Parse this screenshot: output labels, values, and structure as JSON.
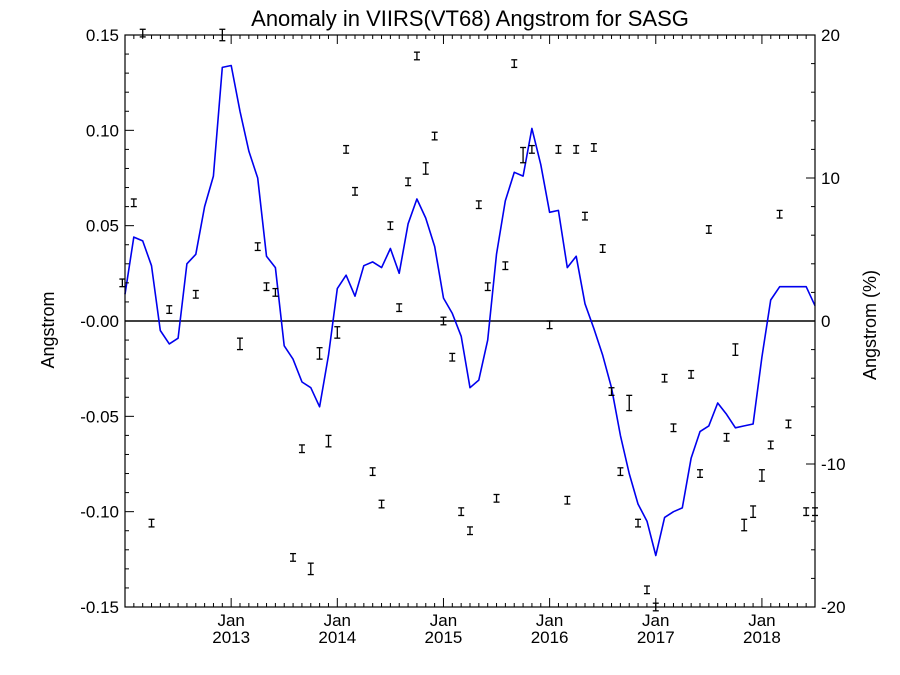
{
  "chart_data": {
    "type": "line",
    "title": "Anomaly in VIIRS(VT68) Angstrom for SASG",
    "xlabel": "",
    "ylabel": "Angstrom",
    "ylabel_right": "Angstrom (%)",
    "ylim": [
      -0.15,
      0.15
    ],
    "ylim_right": [
      -20,
      20
    ],
    "xlim": [
      2012.0,
      2018.5
    ],
    "grid": false,
    "yticks": [
      {
        "value": 0.15,
        "label": "0.15"
      },
      {
        "value": 0.1,
        "label": "0.10"
      },
      {
        "value": 0.05,
        "label": "0.05"
      },
      {
        "value": 0.0,
        "label": "-0.00"
      },
      {
        "value": -0.05,
        "label": "-0.05"
      },
      {
        "value": -0.1,
        "label": "-0.10"
      },
      {
        "value": -0.15,
        "label": "-0.15"
      }
    ],
    "yticks_right": [
      {
        "value": 20,
        "label": "20"
      },
      {
        "value": 10,
        "label": "10"
      },
      {
        "value": 0,
        "label": "0"
      },
      {
        "value": -10,
        "label": "-10"
      },
      {
        "value": -20,
        "label": "-20"
      }
    ],
    "xticks": [
      {
        "value": 2013.0,
        "month": "Jan",
        "year": "2013"
      },
      {
        "value": 2014.0,
        "month": "Jan",
        "year": "2014"
      },
      {
        "value": 2015.0,
        "month": "Jan",
        "year": "2015"
      },
      {
        "value": 2016.0,
        "month": "Jan",
        "year": "2016"
      },
      {
        "value": 2017.0,
        "month": "Jan",
        "year": "2017"
      },
      {
        "value": 2018.0,
        "month": "Jan",
        "year": "2018"
      }
    ],
    "zero_line": 0,
    "colors": {
      "line": "#0000ee",
      "points": "#000000",
      "axes": "#000000"
    },
    "series": [
      {
        "kind": "line",
        "x": [
          2012.0,
          2012.083,
          2012.167,
          2012.25,
          2012.333,
          2012.417,
          2012.5,
          2012.583,
          2012.667,
          2012.75,
          2012.833,
          2012.917,
          2013.0,
          2013.083,
          2013.167,
          2013.25,
          2013.333,
          2013.417,
          2013.5,
          2013.583,
          2013.667,
          2013.75,
          2013.833,
          2013.917,
          2014.0,
          2014.083,
          2014.167,
          2014.25,
          2014.333,
          2014.417,
          2014.5,
          2014.583,
          2014.667,
          2014.75,
          2014.833,
          2014.917,
          2015.0,
          2015.083,
          2015.167,
          2015.25,
          2015.333,
          2015.417,
          2015.5,
          2015.583,
          2015.667,
          2015.75,
          2015.833,
          2015.917,
          2016.0,
          2016.083,
          2016.167,
          2016.25,
          2016.333,
          2016.417,
          2016.5,
          2016.583,
          2016.667,
          2016.75,
          2016.833,
          2016.917,
          2017.0,
          2017.083,
          2017.167,
          2017.25,
          2017.333,
          2017.417,
          2017.5,
          2017.583,
          2017.667,
          2017.75,
          2017.833,
          2017.917,
          2018.0,
          2018.083,
          2018.167,
          2018.25,
          2018.333,
          2018.417,
          2018.5
        ],
        "y": [
          0.014,
          0.044,
          0.042,
          0.029,
          -0.005,
          -0.012,
          -0.009,
          0.03,
          0.035,
          0.06,
          0.076,
          0.133,
          0.134,
          0.11,
          0.089,
          0.075,
          0.034,
          0.028,
          -0.013,
          -0.02,
          -0.032,
          -0.035,
          -0.045,
          -0.018,
          0.017,
          0.024,
          0.013,
          0.029,
          0.031,
          0.028,
          0.038,
          0.025,
          0.051,
          0.064,
          0.054,
          0.039,
          0.012,
          0.004,
          -0.008,
          -0.035,
          -0.031,
          -0.01,
          0.035,
          0.063,
          0.078,
          0.076,
          0.101,
          0.082,
          0.057,
          0.058,
          0.028,
          0.034,
          0.009,
          -0.004,
          -0.018,
          -0.035,
          -0.06,
          -0.08,
          -0.096,
          -0.105,
          -0.123,
          -0.103,
          -0.1,
          -0.098,
          -0.072,
          -0.058,
          -0.055,
          -0.043,
          -0.049,
          -0.056,
          -0.055,
          -0.054,
          -0.019,
          0.011,
          0.018,
          0.018,
          0.018,
          0.018,
          0.008
        ]
      },
      {
        "kind": "scatter",
        "x": [
          2011.975,
          2012.083,
          2012.167,
          2012.25,
          2012.417,
          2012.667,
          2012.917,
          2013.083,
          2013.25,
          2013.333,
          2013.417,
          2013.583,
          2013.667,
          2013.75,
          2013.833,
          2013.917,
          2014.0,
          2014.083,
          2014.167,
          2014.333,
          2014.417,
          2014.5,
          2014.583,
          2014.667,
          2014.75,
          2014.833,
          2014.917,
          2015.0,
          2015.083,
          2015.167,
          2015.25,
          2015.333,
          2015.417,
          2015.5,
          2015.583,
          2015.667,
          2015.75,
          2015.833,
          2016.0,
          2016.083,
          2016.167,
          2016.25,
          2016.333,
          2016.417,
          2016.5,
          2016.583,
          2016.667,
          2016.75,
          2016.833,
          2016.917,
          2017.0,
          2017.083,
          2017.167,
          2017.333,
          2017.417,
          2017.5,
          2017.667,
          2017.75,
          2017.833,
          2017.917,
          2018.0,
          2018.083,
          2018.167,
          2018.25,
          2018.417,
          2018.5
        ],
        "y": [
          0.02,
          0.062,
          0.151,
          -0.106,
          0.006,
          0.014,
          0.15,
          -0.012,
          0.039,
          0.018,
          0.015,
          -0.124,
          -0.067,
          -0.13,
          -0.017,
          -0.063,
          -0.006,
          0.09,
          0.068,
          -0.079,
          -0.096,
          0.05,
          0.007,
          0.073,
          0.139,
          0.08,
          0.097,
          0.0,
          -0.019,
          -0.1,
          -0.11,
          0.061,
          0.018,
          -0.093,
          0.029,
          0.135,
          0.087,
          0.09,
          -0.002,
          0.09,
          -0.094,
          0.09,
          0.055,
          0.091,
          0.038,
          -0.037,
          -0.079,
          -0.043,
          -0.106,
          -0.141,
          -0.15,
          -0.03,
          -0.056,
          -0.028,
          -0.08,
          0.048,
          -0.061,
          -0.015,
          -0.107,
          -0.1,
          -0.081,
          -0.065,
          0.056,
          -0.054,
          -0.1,
          -0.1
        ],
        "yerr": [
          0.002,
          0.002,
          0.002,
          0.002,
          0.002,
          0.002,
          0.003,
          0.003,
          0.002,
          0.002,
          0.002,
          0.002,
          0.002,
          0.003,
          0.003,
          0.003,
          0.003,
          0.002,
          0.002,
          0.002,
          0.002,
          0.002,
          0.002,
          0.002,
          0.002,
          0.003,
          0.002,
          0.002,
          0.002,
          0.002,
          0.002,
          0.002,
          0.002,
          0.002,
          0.002,
          0.002,
          0.004,
          0.002,
          0.002,
          0.002,
          0.002,
          0.002,
          0.002,
          0.002,
          0.002,
          0.002,
          0.002,
          0.004,
          0.002,
          0.002,
          0.002,
          0.002,
          0.002,
          0.002,
          0.002,
          0.002,
          0.002,
          0.003,
          0.003,
          0.003,
          0.003,
          0.002,
          0.002,
          0.002,
          0.002,
          0.002
        ]
      }
    ]
  }
}
